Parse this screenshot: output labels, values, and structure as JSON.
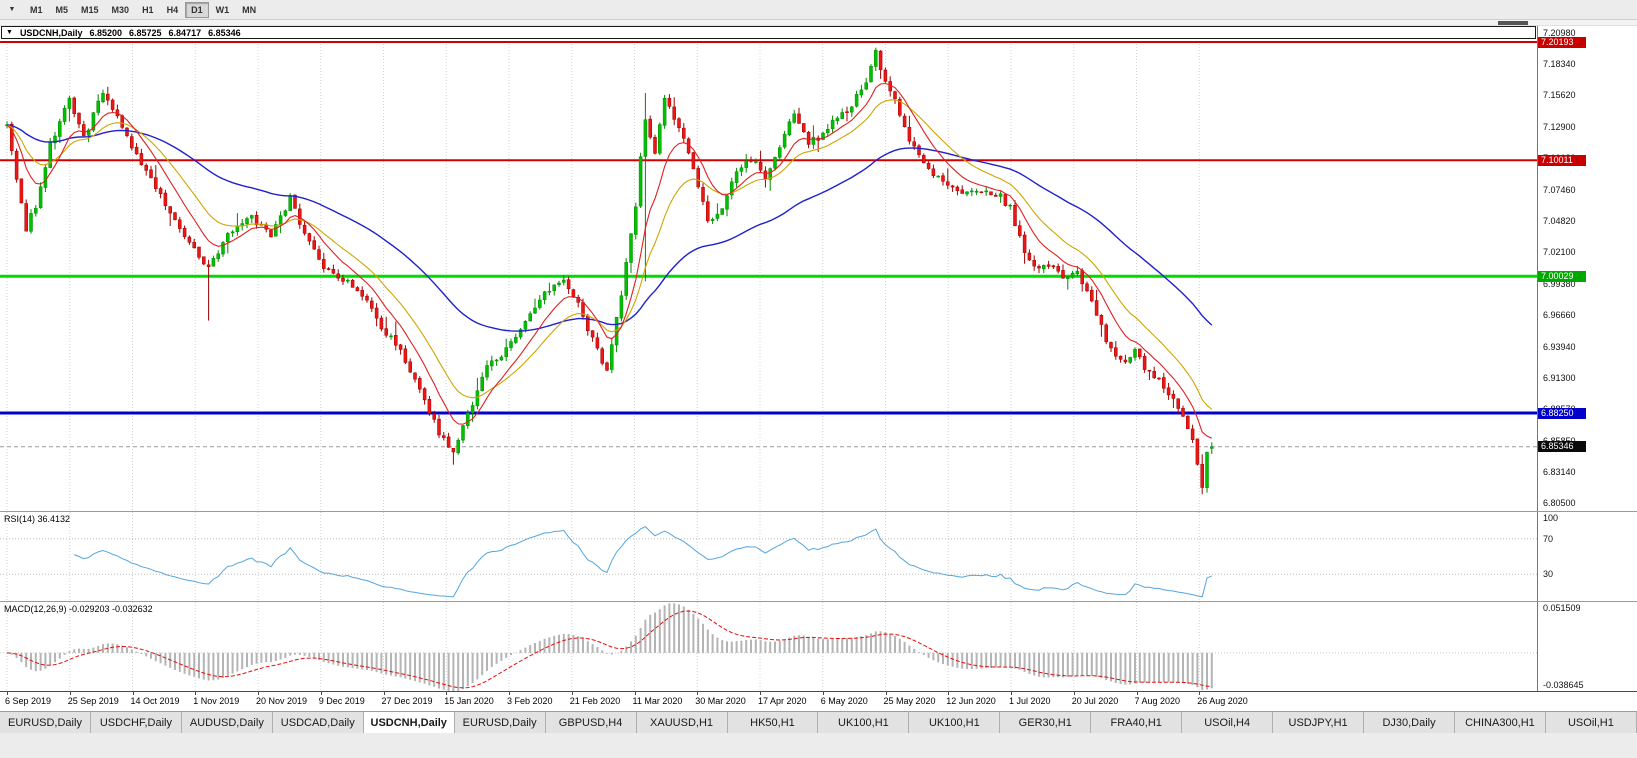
{
  "toolbar": {
    "charts_dropdown_icon": "▼",
    "timeframes": [
      "M1",
      "M5",
      "M15",
      "M30",
      "H1",
      "H4",
      "D1",
      "W1",
      "MN"
    ],
    "active_timeframe": "D1"
  },
  "title_bar": {
    "collapse_icon": "▼",
    "symbol": "USDCNH,Daily",
    "open": "6.85200",
    "high": "6.85725",
    "low": "6.84717",
    "close": "6.85346"
  },
  "price_scale": {
    "ticks": [
      "7.20980",
      "7.18340",
      "7.15620",
      "7.12900",
      "7.10180",
      "7.07460",
      "7.04820",
      "7.02100",
      "6.99380",
      "6.96660",
      "6.93940",
      "6.91300",
      "6.88570",
      "6.85850",
      "6.83140",
      "6.80500"
    ],
    "badges": [
      {
        "label": "7.20193",
        "price": 7.20193,
        "color": "#c80000"
      },
      {
        "label": "7.10011",
        "price": 7.10011,
        "color": "#c80000"
      },
      {
        "label": "7.00029",
        "price": 7.00029,
        "color": "#00a800"
      },
      {
        "label": "6.88250",
        "price": 6.8825,
        "color": "#0000c8"
      },
      {
        "label": "6.85346",
        "price": 6.85346,
        "color": "#0a0a0a"
      }
    ]
  },
  "chart_data": {
    "type": "candlestick",
    "symbol": "USDCNH",
    "timeframe": "Daily",
    "x_labels": [
      "6 Sep 2019",
      "25 Sep 2019",
      "14 Oct 2019",
      "1 Nov 2019",
      "20 Nov 2019",
      "9 Dec 2019",
      "27 Dec 2019",
      "15 Jan 2020",
      "3 Feb 2020",
      "21 Feb 2020",
      "11 Mar 2020",
      "30 Mar 2020",
      "17 Apr 2020",
      "6 May 2020",
      "25 May 2020",
      "12 Jun 2020",
      "1 Jul 2020",
      "20 Jul 2020",
      "7 Aug 2020",
      "26 Aug 2020"
    ],
    "y_range": [
      6.7981,
      7.2157
    ],
    "bar_count": 252,
    "seed": 42,
    "close_anchors": [
      [
        0,
        7.13
      ],
      [
        2,
        7.085
      ],
      [
        4,
        7.042
      ],
      [
        6,
        7.062
      ],
      [
        9,
        7.112
      ],
      [
        13,
        7.152
      ],
      [
        16,
        7.118
      ],
      [
        20,
        7.16
      ],
      [
        22,
        7.146
      ],
      [
        24,
        7.128
      ],
      [
        28,
        7.096
      ],
      [
        33,
        7.062
      ],
      [
        38,
        7.03
      ],
      [
        42,
        7.008
      ],
      [
        45,
        7.03
      ],
      [
        48,
        7.042
      ],
      [
        51,
        7.05
      ],
      [
        55,
        7.034
      ],
      [
        59,
        7.068
      ],
      [
        62,
        7.036
      ],
      [
        66,
        7.006
      ],
      [
        70,
        6.996
      ],
      [
        74,
        6.986
      ],
      [
        78,
        6.958
      ],
      [
        82,
        6.934
      ],
      [
        86,
        6.902
      ],
      [
        90,
        6.864
      ],
      [
        93,
        6.846
      ],
      [
        96,
        6.882
      ],
      [
        100,
        6.92
      ],
      [
        104,
        6.936
      ],
      [
        108,
        6.964
      ],
      [
        112,
        6.984
      ],
      [
        116,
        6.996
      ],
      [
        119,
        6.976
      ],
      [
        122,
        6.946
      ],
      [
        125,
        6.916
      ],
      [
        128,
        6.986
      ],
      [
        131,
        7.062
      ],
      [
        133,
        7.138
      ],
      [
        135,
        7.108
      ],
      [
        137,
        7.152
      ],
      [
        140,
        7.128
      ],
      [
        143,
        7.096
      ],
      [
        146,
        7.048
      ],
      [
        149,
        7.056
      ],
      [
        152,
        7.092
      ],
      [
        155,
        7.102
      ],
      [
        158,
        7.086
      ],
      [
        161,
        7.112
      ],
      [
        164,
        7.14
      ],
      [
        167,
        7.114
      ],
      [
        170,
        7.122
      ],
      [
        173,
        7.136
      ],
      [
        176,
        7.148
      ],
      [
        179,
        7.168
      ],
      [
        181,
        7.194
      ],
      [
        183,
        7.168
      ],
      [
        185,
        7.152
      ],
      [
        188,
        7.118
      ],
      [
        191,
        7.098
      ],
      [
        194,
        7.086
      ],
      [
        197,
        7.076
      ],
      [
        200,
        7.07
      ],
      [
        203,
        7.074
      ],
      [
        206,
        7.072
      ],
      [
        209,
        7.06
      ],
      [
        211,
        7.032
      ],
      [
        214,
        7.006
      ],
      [
        217,
        7.012
      ],
      [
        220,
        6.996
      ],
      [
        223,
        7.006
      ],
      [
        226,
        6.976
      ],
      [
        229,
        6.946
      ],
      [
        232,
        6.926
      ],
      [
        235,
        6.936
      ],
      [
        238,
        6.916
      ],
      [
        241,
        6.906
      ],
      [
        244,
        6.886
      ],
      [
        247,
        6.862
      ],
      [
        249,
        6.82
      ],
      [
        250,
        6.848
      ],
      [
        251,
        6.85346
      ]
    ],
    "wick_overrides": [
      {
        "i": 42,
        "low": 6.962
      },
      {
        "i": 93,
        "low": 6.838
      },
      {
        "i": 133,
        "low": 6.996,
        "high": 7.158
      },
      {
        "i": 181,
        "high": 7.197
      },
      {
        "i": 249,
        "low": 6.8125
      }
    ],
    "last_candle": {
      "open": 6.852,
      "high": 6.85725,
      "low": 6.84717,
      "close": 6.85346
    },
    "hlines": [
      {
        "price": 7.20193,
        "color": "#d00000",
        "width": 2
      },
      {
        "price": 7.10011,
        "color": "#d00000",
        "width": 2
      },
      {
        "price": 7.00029,
        "color": "#00dc00",
        "width": 3
      },
      {
        "price": 6.8825,
        "color": "#0000d2",
        "width": 3
      }
    ],
    "current_price": 6.85346,
    "moving_averages": [
      {
        "period": 55,
        "color": "#2020cc",
        "width": 1.4
      },
      {
        "period": 18,
        "color": "#cfa500",
        "width": 1.1
      },
      {
        "period": 9,
        "color": "#e02020",
        "width": 1.1
      }
    ],
    "colors": {
      "up": "#00c000",
      "up_border": "#008a00",
      "down": "#ee1515",
      "down_border": "#9c0000",
      "grid": "#d4d4d4",
      "price_line": "#9a9a9a"
    }
  },
  "rsi_panel": {
    "title": "RSI(14) 36.4132",
    "scale_labels": [
      {
        "v": 100,
        "label": "100"
      },
      {
        "v": 70,
        "label": "70"
      },
      {
        "v": 30,
        "label": "30"
      }
    ],
    "levels": [
      70,
      30
    ],
    "line_color": "#55a5dd",
    "range": [
      0,
      100
    ]
  },
  "macd_panel": {
    "title": "MACD(12,26,9) -0.029203 -0.032632",
    "scale_top": "0.051509",
    "scale_bottom": "-0.038645",
    "range": [
      -0.0386,
      0.0515
    ],
    "bar_color": "#b4b4b4",
    "signal_color": "#e01010"
  },
  "tabs": [
    "EURUSD,Daily",
    "USDCHF,Daily",
    "AUDUSD,Daily",
    "USDCAD,Daily",
    "USDCNH,Daily",
    "EURUSD,Daily",
    "GBPUSD,H4",
    "XAUUSD,H1",
    "HK50,H1",
    "UK100,H1",
    "UK100,H1",
    "GER30,H1",
    "FRA40,H1",
    "USOil,H4",
    "USDJPY,H1",
    "DJ30,Daily",
    "CHINA300,H1",
    "USOil,H1"
  ],
  "active_tab_index": 4
}
